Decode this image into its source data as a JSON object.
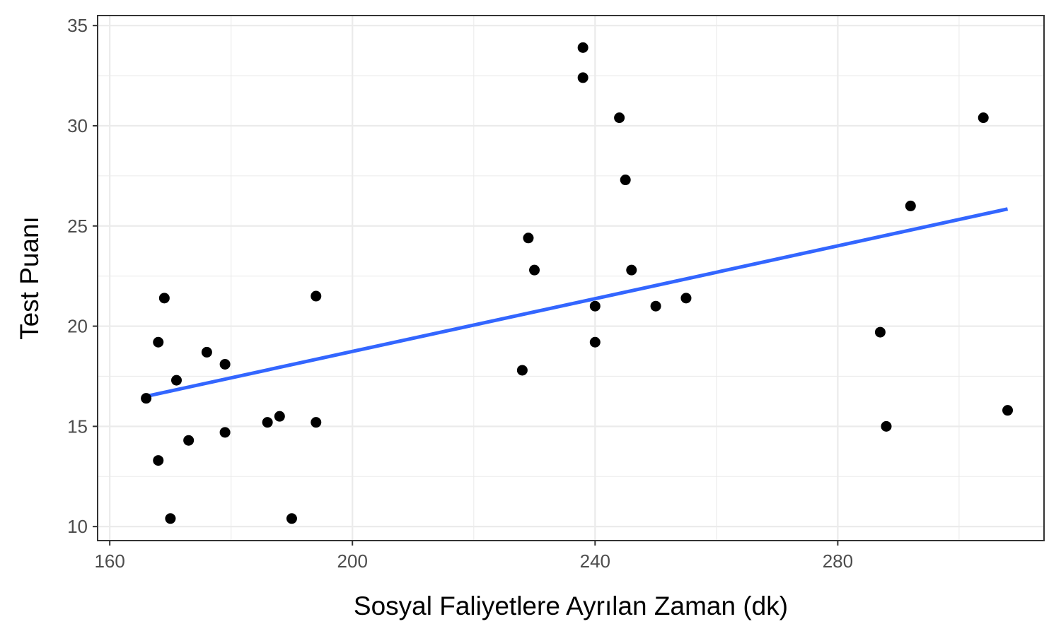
{
  "chart_data": {
    "type": "scatter",
    "title": "",
    "xlabel": "Sosyal Faliyetlere Ayrılan Zaman (dk)",
    "ylabel": "Test Puanı",
    "xlim": [
      158,
      314
    ],
    "ylim": [
      9.3,
      35.5
    ],
    "xticks": [
      160,
      200,
      240,
      280
    ],
    "xtick_labels": [
      "160",
      "200",
      "240",
      "280"
    ],
    "yticks": [
      10,
      15,
      20,
      25,
      30,
      35
    ],
    "ytick_labels": [
      "10",
      "15",
      "20",
      "25",
      "30",
      "35"
    ],
    "grid": true,
    "legend": "none",
    "colors": {
      "points": "#000000",
      "trend_line": "#3366FF",
      "grid": "#ebebeb",
      "panel_border": "#333333"
    },
    "points": [
      {
        "x": 166,
        "y": 16.4
      },
      {
        "x": 168,
        "y": 19.2
      },
      {
        "x": 168,
        "y": 13.3
      },
      {
        "x": 169,
        "y": 21.4
      },
      {
        "x": 170,
        "y": 10.4
      },
      {
        "x": 171,
        "y": 17.3
      },
      {
        "x": 173,
        "y": 14.3
      },
      {
        "x": 176,
        "y": 18.7
      },
      {
        "x": 179,
        "y": 18.1
      },
      {
        "x": 179,
        "y": 14.7
      },
      {
        "x": 186,
        "y": 15.2
      },
      {
        "x": 188,
        "y": 15.5
      },
      {
        "x": 190,
        "y": 10.4
      },
      {
        "x": 194,
        "y": 21.5
      },
      {
        "x": 194,
        "y": 15.2
      },
      {
        "x": 228,
        "y": 17.8
      },
      {
        "x": 229,
        "y": 24.4
      },
      {
        "x": 230,
        "y": 22.8
      },
      {
        "x": 238,
        "y": 33.9
      },
      {
        "x": 238,
        "y": 32.4
      },
      {
        "x": 240,
        "y": 21.0
      },
      {
        "x": 240,
        "y": 19.2
      },
      {
        "x": 244,
        "y": 30.4
      },
      {
        "x": 245,
        "y": 27.3
      },
      {
        "x": 246,
        "y": 22.8
      },
      {
        "x": 250,
        "y": 21.0
      },
      {
        "x": 255,
        "y": 21.4
      },
      {
        "x": 287,
        "y": 19.7
      },
      {
        "x": 288,
        "y": 15.0
      },
      {
        "x": 292,
        "y": 26.0
      },
      {
        "x": 304,
        "y": 30.4
      },
      {
        "x": 308,
        "y": 15.8
      }
    ],
    "trend_line": {
      "x": [
        166,
        308
      ],
      "y": [
        16.5,
        25.85
      ]
    }
  }
}
